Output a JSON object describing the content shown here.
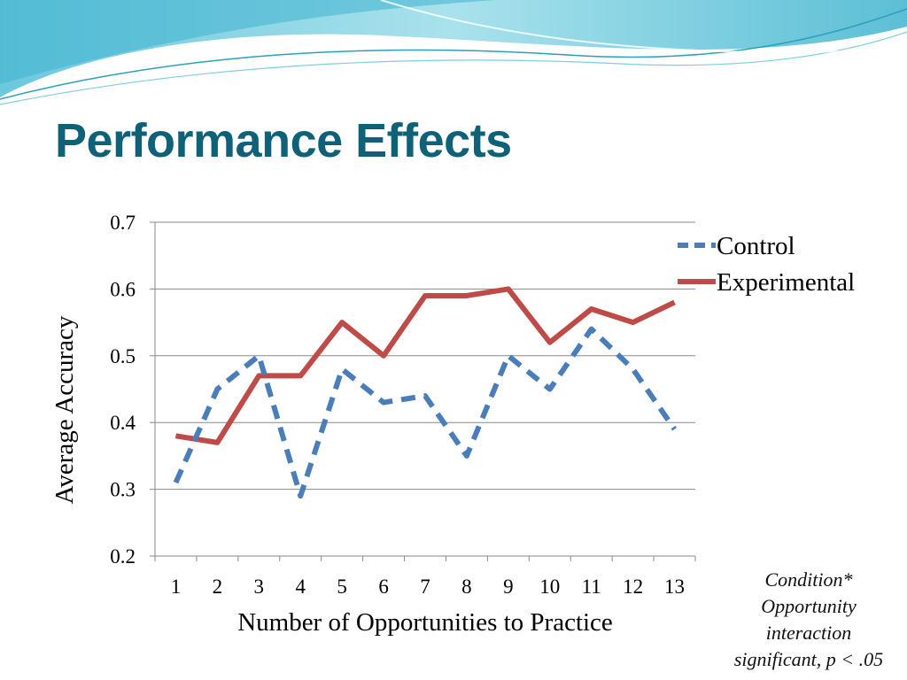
{
  "slide": {
    "title": "Performance Effects",
    "note": [
      "Condition*",
      "Opportunity",
      "interaction",
      "significant, p < .05"
    ]
  },
  "colors": {
    "title": "#0f6178",
    "control": "#4a7ebb",
    "experimental": "#be4b48",
    "grid": "#888888"
  },
  "chart_data": {
    "type": "line",
    "title": "",
    "xlabel": "Number of Opportunities to Practice",
    "ylabel": "Average Accuracy",
    "categories": [
      "1",
      "2",
      "3",
      "4",
      "5",
      "6",
      "7",
      "8",
      "9",
      "10",
      "11",
      "12",
      "13"
    ],
    "ylim": [
      0.2,
      0.7
    ],
    "yticks": [
      "0.2",
      "0.3",
      "0.4",
      "0.5",
      "0.6",
      "0.7"
    ],
    "grid": true,
    "legend_position": "top-right",
    "series": [
      {
        "name": "Control",
        "style": "dashed",
        "values": [
          0.31,
          0.45,
          0.5,
          0.29,
          0.48,
          0.43,
          0.44,
          0.35,
          0.5,
          0.45,
          0.54,
          0.48,
          0.39
        ]
      },
      {
        "name": "Experimental",
        "style": "solid",
        "values": [
          0.38,
          0.37,
          0.47,
          0.47,
          0.55,
          0.5,
          0.59,
          0.59,
          0.6,
          0.52,
          0.57,
          0.55,
          0.58
        ]
      }
    ]
  }
}
